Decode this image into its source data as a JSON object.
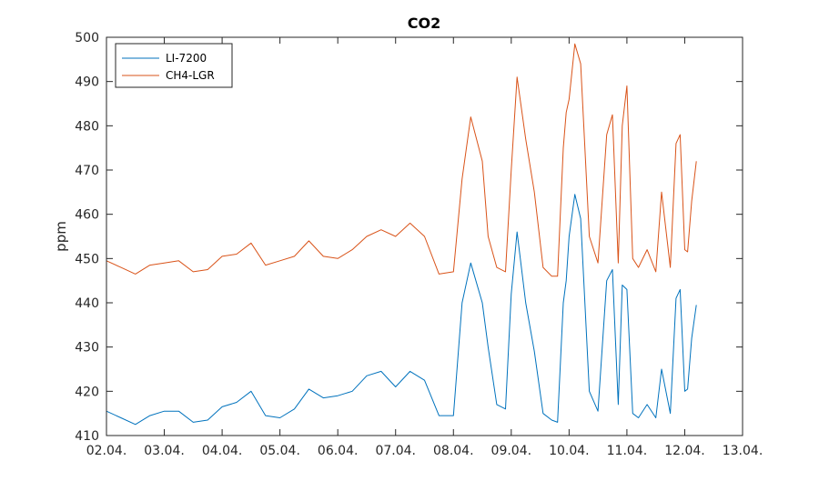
{
  "chart_data": {
    "type": "line",
    "title": "CO2",
    "xlabel": "",
    "ylabel": "ppm",
    "x_unit": "day",
    "xlim": [
      0,
      11
    ],
    "ylim": [
      410,
      500
    ],
    "x_ticks": [
      0,
      1,
      2,
      3,
      4,
      5,
      6,
      7,
      8,
      9,
      10,
      11
    ],
    "x_tick_labels": [
      "02.04.",
      "03.04.",
      "04.04.",
      "05.04.",
      "06.04.",
      "07.04.",
      "08.04.",
      "09.04.",
      "10.04.",
      "11.04.",
      "12.04.",
      "13.04."
    ],
    "y_ticks": [
      410,
      420,
      430,
      440,
      450,
      460,
      470,
      480,
      490,
      500
    ],
    "grid": false,
    "legend_position": "top-left",
    "series": [
      {
        "name": "LI-7200",
        "color": "#0072BD",
        "x": [
          0,
          0.25,
          0.5,
          0.75,
          1.0,
          1.25,
          1.5,
          1.75,
          2.0,
          2.25,
          2.5,
          2.75,
          3.0,
          3.25,
          3.5,
          3.75,
          4.0,
          4.25,
          4.5,
          4.75,
          5.0,
          5.25,
          5.5,
          5.75,
          6.0,
          6.15,
          6.3,
          6.5,
          6.6,
          6.75,
          6.9,
          7.0,
          7.1,
          7.25,
          7.4,
          7.55,
          7.7,
          7.8,
          7.9,
          7.95,
          8.0,
          8.1,
          8.2,
          8.35,
          8.5,
          8.65,
          8.75,
          8.85,
          8.92,
          9.0,
          9.1,
          9.2,
          9.35,
          9.5,
          9.6,
          9.75,
          9.85,
          9.92,
          10.0,
          10.05,
          10.12,
          10.2
        ],
        "y": [
          415.5,
          414.0,
          412.5,
          414.5,
          415.5,
          415.5,
          413.0,
          413.5,
          416.5,
          417.5,
          420.0,
          414.5,
          414.0,
          416.0,
          420.5,
          418.5,
          419.0,
          420.0,
          423.5,
          424.5,
          421.0,
          424.5,
          422.5,
          414.5,
          414.5,
          440.0,
          449.0,
          440.0,
          430.0,
          417.0,
          416.0,
          442.0,
          456.0,
          440.0,
          429.0,
          415.0,
          413.5,
          413.0,
          440.0,
          445.0,
          455.0,
          464.5,
          459.0,
          420.0,
          415.5,
          445.0,
          447.5,
          417.0,
          444.0,
          443.0,
          415.0,
          414.0,
          417.0,
          414.0,
          425.0,
          415.0,
          441.0,
          443.0,
          420.0,
          420.5,
          432.0,
          439.5
        ]
      },
      {
        "name": "CH4-LGR",
        "color": "#D95319",
        "x": [
          0,
          0.25,
          0.5,
          0.75,
          1.0,
          1.25,
          1.5,
          1.75,
          2.0,
          2.25,
          2.5,
          2.75,
          3.0,
          3.25,
          3.5,
          3.75,
          4.0,
          4.25,
          4.5,
          4.75,
          5.0,
          5.25,
          5.5,
          5.75,
          6.0,
          6.15,
          6.3,
          6.5,
          6.6,
          6.75,
          6.9,
          7.0,
          7.1,
          7.25,
          7.4,
          7.55,
          7.7,
          7.8,
          7.9,
          7.95,
          8.0,
          8.1,
          8.2,
          8.35,
          8.5,
          8.65,
          8.75,
          8.85,
          8.92,
          9.0,
          9.1,
          9.2,
          9.35,
          9.5,
          9.6,
          9.75,
          9.85,
          9.92,
          10.0,
          10.05,
          10.12,
          10.2
        ],
        "y": [
          449.5,
          448.0,
          446.5,
          448.5,
          449.0,
          449.5,
          447.0,
          447.5,
          450.5,
          451.0,
          453.5,
          448.5,
          449.5,
          450.5,
          454.0,
          450.5,
          450.0,
          452.0,
          455.0,
          456.5,
          455.0,
          458.0,
          455.0,
          446.5,
          447.0,
          468.0,
          482.0,
          472.0,
          455.0,
          448.0,
          447.0,
          470.0,
          491.0,
          477.0,
          465.0,
          448.0,
          446.0,
          446.0,
          475.0,
          483.0,
          486.0,
          498.5,
          494.0,
          455.0,
          449.0,
          478.0,
          482.5,
          449.0,
          480.0,
          489.0,
          450.0,
          448.0,
          452.0,
          447.0,
          465.0,
          448.0,
          476.0,
          478.0,
          452.0,
          451.5,
          463.0,
          472.0
        ]
      }
    ]
  }
}
